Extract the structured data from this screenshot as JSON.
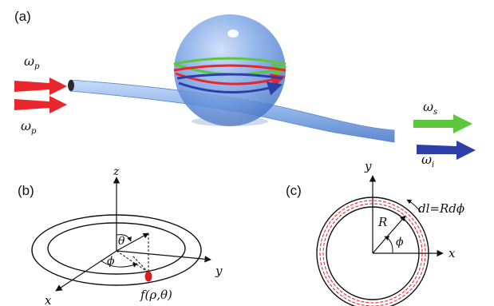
{
  "panel_a": {
    "label": "(a)",
    "pump_1": {
      "symbol": "ω",
      "sub": "p"
    },
    "pump_2": {
      "symbol": "ω",
      "sub": "p"
    },
    "signal": {
      "symbol": "ω",
      "sub": "s"
    },
    "idler": {
      "symbol": "ω",
      "sub": "i"
    }
  },
  "panel_b": {
    "label": "(b)",
    "axis_z": "z",
    "axis_y": "y",
    "axis_x": "x",
    "angle_theta": "θ",
    "angle_phi": "ϕ",
    "field_label": "f(ρ,θ)"
  },
  "panel_c": {
    "label": "(c)",
    "axis_y": "y",
    "axis_x": "x",
    "radius": "R",
    "angle_phi": "ϕ",
    "arc_element": "dl=Rdϕ"
  },
  "colors": {
    "pump": "#e8262b",
    "signal": "#5cc63c",
    "idler": "#2d3ea8",
    "resonator": "#6e9be0",
    "fiber": "#9ec0ee",
    "field_spot": "#d81e1e",
    "dashed_circle": "#e0313a"
  }
}
